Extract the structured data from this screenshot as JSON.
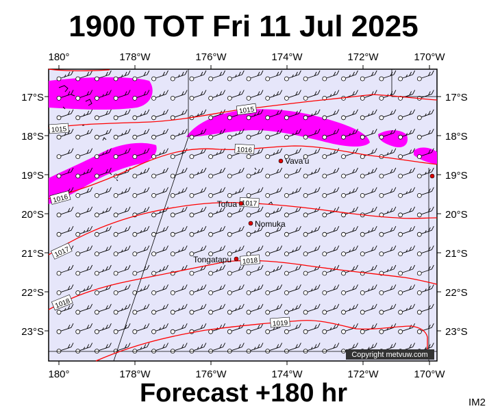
{
  "title": "1900 TOT Fri 11 Jul 2025",
  "footer": "Forecast +180 hr",
  "image_code": "IM2",
  "copyright": "Copyright metvuw.com",
  "colors": {
    "map_background": "#e6e6fa",
    "precip": "#ff00ff",
    "isobar": "#ff0000",
    "place_dot": "#dd0000"
  },
  "map": {
    "longitude_labels": [
      "180°",
      "178°W",
      "176°W",
      "174°W",
      "172°W",
      "170°W"
    ],
    "latitude_labels": [
      "17°S",
      "18°S",
      "19°S",
      "20°S",
      "21°S",
      "22°S",
      "23°S"
    ]
  },
  "places": [
    {
      "name": "Vava'u"
    },
    {
      "name": "Tofua"
    },
    {
      "name": "Nomuka"
    },
    {
      "name": "Tongatapu"
    }
  ],
  "isobars": [
    {
      "label": "1015"
    },
    {
      "label": "1015"
    },
    {
      "label": "1016"
    },
    {
      "label": "1016"
    },
    {
      "label": "1017"
    },
    {
      "label": "1017"
    },
    {
      "label": "1018"
    },
    {
      "label": "1018"
    },
    {
      "label": "1019"
    }
  ]
}
